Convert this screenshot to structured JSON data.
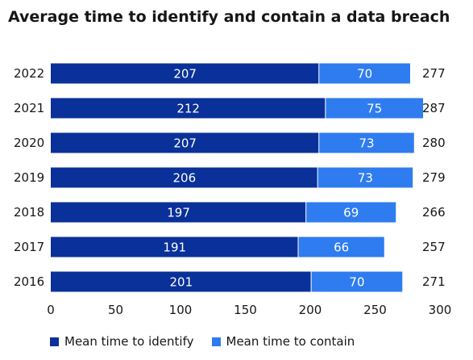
{
  "chart_data": {
    "type": "bar",
    "orientation": "horizontal",
    "stacked": true,
    "title": "Average time to identify and contain a data breach",
    "categories": [
      "2022",
      "2021",
      "2020",
      "2019",
      "2018",
      "2017",
      "2016"
    ],
    "series": [
      {
        "name": "Mean time to identify",
        "color": "#0a3199",
        "values": [
          207,
          212,
          207,
          206,
          197,
          191,
          201
        ]
      },
      {
        "name": "Mean time to contain",
        "color": "#2f7cf0",
        "values": [
          70,
          75,
          73,
          73,
          69,
          66,
          70
        ]
      }
    ],
    "totals": [
      277,
      287,
      280,
      279,
      266,
      257,
      271
    ],
    "xlim": [
      0,
      300
    ],
    "xticks": [
      "0",
      "50",
      "100",
      "150",
      "200",
      "250",
      "300"
    ],
    "grid": false,
    "legend_position": "bottom"
  }
}
